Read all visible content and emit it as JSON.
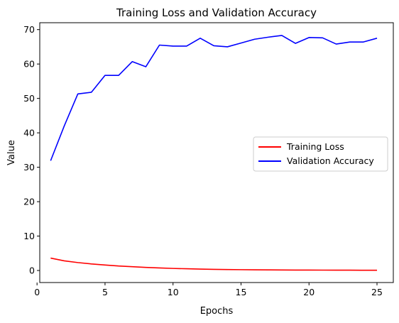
{
  "chart_data": {
    "type": "line",
    "title": "Training Loss and Validation Accuracy",
    "xlabel": "Epochs",
    "ylabel": "Value",
    "xlim": [
      0.2,
      26.2
    ],
    "ylim": [
      -3.5,
      72
    ],
    "xticks": [
      0,
      5,
      10,
      15,
      20,
      25
    ],
    "yticks": [
      0,
      10,
      20,
      30,
      40,
      50,
      60,
      70
    ],
    "grid": false,
    "legend_position": "center-right",
    "x": [
      1,
      2,
      3,
      4,
      5,
      6,
      7,
      8,
      9,
      10,
      11,
      12,
      13,
      14,
      15,
      16,
      17,
      18,
      19,
      20,
      21,
      22,
      23,
      24,
      25
    ],
    "series": [
      {
        "name": "Training Loss",
        "color": "#ff0000",
        "values": [
          3.6,
          2.8,
          2.3,
          1.9,
          1.6,
          1.3,
          1.1,
          0.9,
          0.75,
          0.6,
          0.5,
          0.4,
          0.33,
          0.28,
          0.24,
          0.2,
          0.17,
          0.15,
          0.13,
          0.12,
          0.11,
          0.1,
          0.09,
          0.08,
          0.07
        ]
      },
      {
        "name": "Validation Accuracy",
        "color": "#0000ff",
        "values": [
          31.9,
          42.0,
          51.3,
          51.8,
          56.7,
          56.7,
          60.7,
          59.2,
          65.5,
          65.2,
          65.2,
          67.5,
          65.3,
          65.0,
          66.1,
          67.2,
          67.8,
          68.3,
          66.0,
          67.7,
          67.6,
          65.8,
          66.4,
          66.4,
          67.5
        ]
      }
    ]
  }
}
